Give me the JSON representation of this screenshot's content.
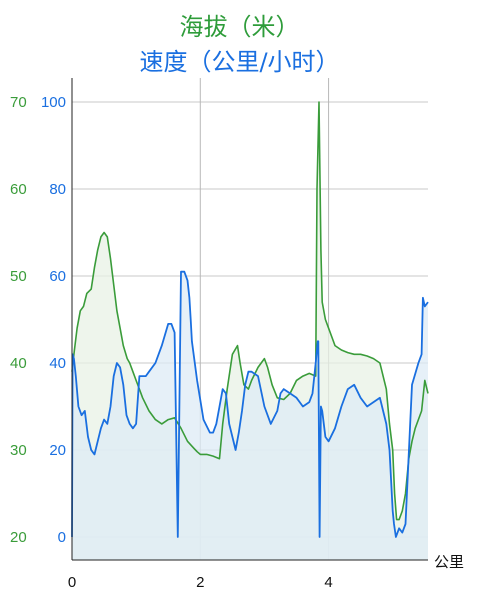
{
  "chart_data": {
    "type": "line",
    "title_elevation": "海拔（米）",
    "title_speed": "速度（公里/小时）",
    "xlabel": "公里",
    "x_ticks": [
      "0",
      "2",
      "4"
    ],
    "xlim": [
      0,
      5.55
    ],
    "y_left_ticks": [
      "20",
      "30",
      "40",
      "50",
      "60",
      "70"
    ],
    "ylim_left": [
      20,
      70
    ],
    "y_right_ticks": [
      "0",
      "20",
      "40",
      "60",
      "80",
      "100"
    ],
    "ylim_right": [
      0,
      100
    ],
    "grid": true,
    "colors": {
      "elevation": "#3a9c3a",
      "speed": "#1a6fe0",
      "elevation_fill": "#e8f2e6",
      "speed_fill": "#deebf5"
    },
    "series": [
      {
        "axis": "left",
        "x": [
          0,
          0.03,
          0.08,
          0.13,
          0.18,
          0.23,
          0.3,
          0.35,
          0.4,
          0.45,
          0.5,
          0.55,
          0.6,
          0.65,
          0.7,
          0.75,
          0.8,
          0.86,
          0.9,
          0.95,
          1.0,
          1.05,
          1.1,
          1.2,
          1.3,
          1.4,
          1.5,
          1.6,
          1.7,
          1.8,
          1.9,
          1.95,
          2.0,
          2.1,
          2.2,
          2.3,
          2.35,
          2.42,
          2.5,
          2.58,
          2.62,
          2.68,
          2.75,
          2.8,
          2.9,
          3.0,
          3.05,
          3.12,
          3.2,
          3.3,
          3.4,
          3.5,
          3.6,
          3.7,
          3.8,
          3.82,
          3.85,
          3.88,
          3.9,
          3.95,
          4.0,
          4.05,
          4.1,
          4.2,
          4.3,
          4.4,
          4.5,
          4.6,
          4.7,
          4.8,
          4.9,
          4.95,
          5.0,
          5.03,
          5.06,
          5.1,
          5.15,
          5.2,
          5.25,
          5.3,
          5.35,
          5.4,
          5.45,
          5.5,
          5.55
        ],
        "y": [
          39,
          41,
          44,
          46,
          46.5,
          48,
          48.5,
          51,
          53,
          54.5,
          55,
          54.5,
          52,
          49,
          46,
          44,
          42,
          40.5,
          40,
          39,
          38,
          37,
          36,
          34.5,
          33.5,
          33,
          33.5,
          33.7,
          32.5,
          31,
          30.2,
          29.8,
          29.5,
          29.5,
          29.3,
          29,
          33,
          37,
          41,
          42,
          40,
          37.5,
          37,
          38,
          39.5,
          40.5,
          39.5,
          37.5,
          36,
          35.8,
          36.5,
          38,
          38.5,
          38.8,
          38.5,
          60,
          70,
          53,
          47,
          45,
          44,
          43,
          42,
          41.5,
          41.2,
          41,
          41,
          40.8,
          40.5,
          40,
          37,
          33,
          30,
          25,
          22,
          22,
          23,
          25,
          29,
          31,
          32.5,
          33.5,
          34.5,
          38,
          36.5
        ]
      },
      {
        "axis": "right",
        "x": [
          0,
          0.01,
          0.03,
          0.06,
          0.1,
          0.15,
          0.2,
          0.25,
          0.3,
          0.35,
          0.4,
          0.45,
          0.5,
          0.55,
          0.6,
          0.65,
          0.7,
          0.75,
          0.8,
          0.85,
          0.9,
          0.95,
          1.0,
          1.05,
          1.1,
          1.15,
          1.2,
          1.3,
          1.4,
          1.5,
          1.55,
          1.6,
          1.65,
          1.7,
          1.75,
          1.8,
          1.83,
          1.85,
          1.87,
          1.95,
          2.05,
          2.15,
          2.2,
          2.25,
          2.3,
          2.35,
          2.4,
          2.45,
          2.5,
          2.55,
          2.6,
          2.65,
          2.7,
          2.75,
          2.8,
          2.9,
          3.0,
          3.1,
          3.2,
          3.25,
          3.3,
          3.4,
          3.5,
          3.6,
          3.7,
          3.75,
          3.8,
          3.83,
          3.84,
          3.86,
          3.88,
          3.9,
          3.95,
          4.0,
          4.1,
          4.2,
          4.3,
          4.4,
          4.5,
          4.6,
          4.7,
          4.8,
          4.9,
          4.95,
          5.0,
          5.02,
          5.05,
          5.1,
          5.15,
          5.2,
          5.3,
          5.4,
          5.45,
          5.47,
          5.5,
          5.55
        ],
        "y": [
          0,
          42,
          41,
          37,
          30,
          28,
          29,
          23,
          20,
          19,
          22,
          25,
          27,
          26,
          30,
          37,
          40,
          39,
          35,
          28,
          26,
          25,
          26,
          37,
          37,
          37,
          38,
          40,
          44,
          49,
          49,
          47,
          0,
          61,
          61,
          59,
          55,
          50,
          45,
          36,
          27,
          24,
          24,
          26,
          30,
          34,
          33,
          26,
          23,
          20,
          24,
          29,
          35,
          38,
          38,
          37,
          30,
          26,
          29,
          33,
          34,
          33,
          32,
          30,
          31,
          33,
          40,
          45,
          45,
          0,
          30,
          29,
          23,
          22,
          25,
          30,
          34,
          35,
          32,
          30,
          31,
          32,
          26,
          20,
          6,
          3,
          0,
          2,
          1,
          3,
          35,
          40,
          42,
          55,
          53,
          54
        ]
      }
    ]
  }
}
